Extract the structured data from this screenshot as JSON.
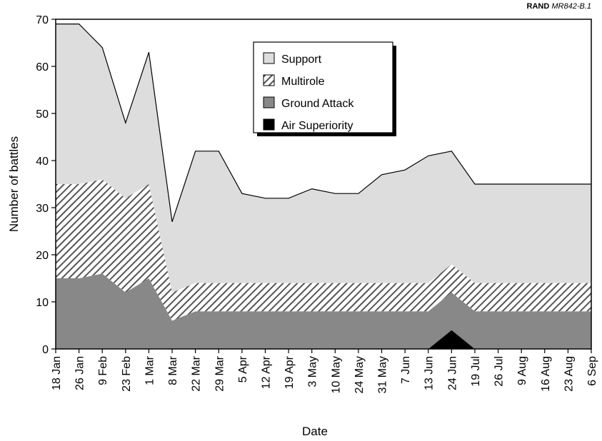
{
  "credit": {
    "org": "RAND",
    "code": "MR842-B.1"
  },
  "chart_data": {
    "type": "area",
    "stacked": true,
    "xlabel": "Date",
    "ylabel": "Number of battles",
    "ylim": [
      0,
      70
    ],
    "yticks": [
      0,
      10,
      20,
      30,
      40,
      50,
      60,
      70
    ],
    "categories": [
      "18 Jan",
      "26 Jan",
      "9 Feb",
      "23 Feb",
      "1 Mar",
      "8 Mar",
      "22 Mar",
      "29 Mar",
      "5 Apr",
      "12 Apr",
      "19 Apr",
      "3 May",
      "10 May",
      "24 May",
      "31 May",
      "7 Jun",
      "13 Jun",
      "24 Jun",
      "19 Jul",
      "26 Jul",
      "9 Aug",
      "16 Aug",
      "23 Aug",
      "6 Sep"
    ],
    "legend_position": "top-center",
    "series": [
      {
        "name": "Air Superiority",
        "pattern": "solid",
        "color": "#000000",
        "values": [
          0,
          0,
          0,
          0,
          0,
          0,
          0,
          0,
          0,
          0,
          0,
          0,
          0,
          0,
          0,
          0,
          0,
          4,
          0,
          0,
          0,
          0,
          0,
          0
        ]
      },
      {
        "name": "Ground Attack",
        "pattern": "solid",
        "color": "#888888",
        "values": [
          15,
          15,
          16,
          12,
          15,
          6,
          8,
          8,
          8,
          8,
          8,
          8,
          8,
          8,
          8,
          8,
          8,
          8,
          8,
          8,
          8,
          8,
          8,
          8
        ]
      },
      {
        "name": "Multirole",
        "pattern": "hatched",
        "color": "#555555",
        "values": [
          20,
          20,
          20,
          20,
          20,
          6,
          6,
          6,
          6,
          6,
          6,
          6,
          6,
          6,
          6,
          6,
          6,
          6,
          6,
          6,
          6,
          6,
          6,
          6
        ]
      },
      {
        "name": "Support",
        "pattern": "solid",
        "color": "#dddddd",
        "values": [
          34,
          34,
          28,
          16,
          28,
          15,
          28,
          28,
          19,
          18,
          18,
          20,
          19,
          19,
          23,
          24,
          27,
          24,
          21,
          21,
          21,
          21,
          21,
          21
        ]
      }
    ],
    "legend": [
      "Support",
      "Multirole",
      "Ground Attack",
      "Air Superiority"
    ]
  }
}
